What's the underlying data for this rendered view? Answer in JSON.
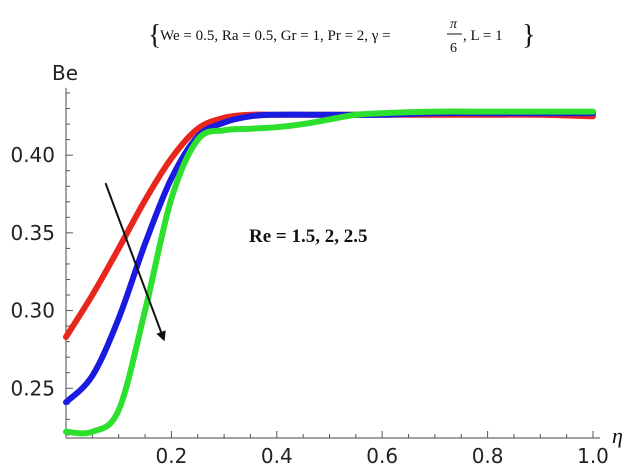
{
  "chart_data": {
    "type": "line",
    "title": {
      "open_brace": "{",
      "params": "We = 0.5, Ra = 0.5, Gr = 1, Pr = 2, γ = ",
      "frac_num": "π",
      "frac_den": "6",
      "tail": ", L = 1",
      "close_brace": "}"
    },
    "xlabel": "η",
    "ylabel": "Be",
    "xlim": [
      0.0,
      1.0
    ],
    "ylim": [
      0.218,
      0.44
    ],
    "xticks": [
      0.2,
      0.4,
      0.6,
      0.8,
      1.0
    ],
    "xtick_labels": [
      "0.2",
      "0.4",
      "0.6",
      "0.8",
      "1.0"
    ],
    "yticks": [
      0.25,
      0.3,
      0.35,
      0.4
    ],
    "ytick_labels": [
      "0.25",
      "0.30",
      "0.35",
      "0.40"
    ],
    "annotation": "Re = 1.5, 2, 2.5",
    "arrow": {
      "from": [
        0.075,
        0.382
      ],
      "to": [
        0.185,
        0.282
      ]
    },
    "series": [
      {
        "color": "#e8261c",
        "x": [
          0.0,
          0.05,
          0.1,
          0.15,
          0.2,
          0.25,
          0.3,
          0.35,
          0.4,
          0.5,
          0.6,
          0.7,
          0.8,
          0.9,
          1.0
        ],
        "y": [
          0.283,
          0.31,
          0.34,
          0.371,
          0.398,
          0.417,
          0.424,
          0.426,
          0.426,
          0.426,
          0.426,
          0.426,
          0.426,
          0.426,
          0.425
        ]
      },
      {
        "color": "#1a1ae0",
        "x": [
          0.0,
          0.05,
          0.1,
          0.15,
          0.2,
          0.25,
          0.3,
          0.35,
          0.4,
          0.5,
          0.6,
          0.7,
          0.8,
          0.9,
          1.0
        ],
        "y": [
          0.241,
          0.258,
          0.295,
          0.343,
          0.385,
          0.412,
          0.421,
          0.425,
          0.426,
          0.426,
          0.426,
          0.427,
          0.427,
          0.427,
          0.427
        ]
      },
      {
        "color": "#2ee02e",
        "x": [
          0.0,
          0.05,
          0.1,
          0.15,
          0.2,
          0.25,
          0.3,
          0.35,
          0.4,
          0.45,
          0.5,
          0.55,
          0.6,
          0.7,
          0.8,
          0.9,
          1.0
        ],
        "y": [
          0.222,
          0.222,
          0.236,
          0.3,
          0.372,
          0.41,
          0.416,
          0.417,
          0.418,
          0.42,
          0.423,
          0.426,
          0.427,
          0.428,
          0.428,
          0.428,
          0.428
        ]
      }
    ]
  }
}
